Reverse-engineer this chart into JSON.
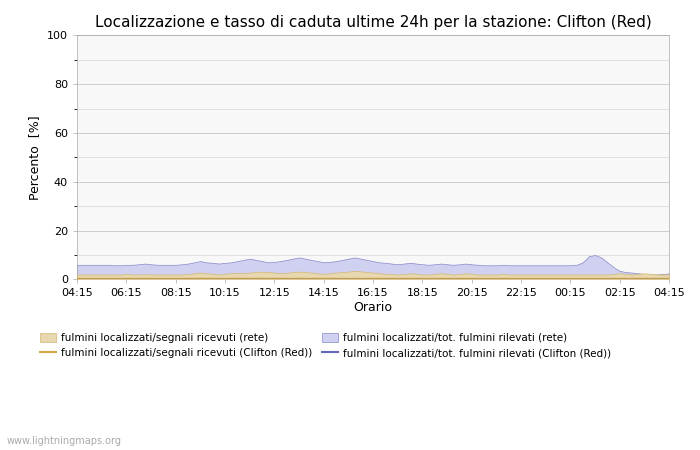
{
  "title": "Localizzazione e tasso di caduta ultime 24h per la stazione: Clifton (Red)",
  "ylabel": "Percento  [%]",
  "xlabel": "Orario",
  "ylim": [
    0,
    100
  ],
  "yticks": [
    0,
    20,
    40,
    60,
    80,
    100
  ],
  "yticks_minor": [
    10,
    30,
    50,
    70,
    90
  ],
  "x_labels": [
    "04:15",
    "06:15",
    "08:15",
    "10:15",
    "12:15",
    "14:15",
    "16:15",
    "18:15",
    "20:15",
    "22:15",
    "00:15",
    "02:15",
    "04:15"
  ],
  "fill_rete_color": "#e8d8b0",
  "fill_rete_edge": "#d4b870",
  "fill_clifton_color": "#d0d0f0",
  "fill_clifton_edge": "#8888cc",
  "line_rete_color": "#d4aa40",
  "line_clifton_color": "#6666bb",
  "watermark": "www.lightningmaps.org",
  "legend": [
    {
      "label": "fulmini localizzati/segnali ricevuti (rete)",
      "type": "fill",
      "color": "#e8d8b0",
      "edge": "#d4b870"
    },
    {
      "label": "fulmini localizzati/segnali ricevuti (Clifton (Red))",
      "type": "line",
      "color": "#d4aa40"
    },
    {
      "label": "fulmini localizzati/tot. fulmini rilevati (rete)",
      "type": "fill",
      "color": "#d0d0f0",
      "edge": "#8888cc"
    },
    {
      "label": "fulmini localizzati/tot. fulmini rilevati (Clifton (Red))",
      "type": "line",
      "color": "#6666bb"
    }
  ],
  "n_points": 97,
  "fill_rete_values": [
    2.0,
    2.0,
    2.0,
    2.0,
    2.0,
    2.0,
    2.0,
    2.0,
    2.2,
    2.0,
    2.0,
    2.1,
    2.0,
    2.0,
    2.0,
    2.0,
    2.0,
    2.0,
    2.2,
    2.5,
    2.8,
    2.5,
    2.3,
    2.0,
    2.3,
    2.5,
    2.7,
    2.5,
    2.8,
    3.0,
    3.2,
    3.0,
    2.8,
    2.5,
    2.7,
    3.0,
    3.2,
    3.0,
    2.8,
    2.5,
    2.3,
    2.5,
    2.8,
    3.0,
    3.2,
    3.5,
    3.3,
    3.0,
    2.8,
    2.5,
    2.3,
    2.2,
    2.0,
    2.2,
    2.5,
    2.3,
    2.0,
    2.0,
    2.2,
    2.5,
    2.3,
    2.0,
    2.2,
    2.5,
    2.3,
    2.0,
    2.0,
    2.0,
    2.0,
    2.2,
    2.0,
    2.0,
    2.0,
    2.0,
    2.0,
    2.0,
    2.0,
    2.0,
    2.0,
    2.0,
    2.0,
    2.0,
    2.0,
    2.0,
    2.0,
    2.0,
    2.0,
    2.2,
    2.5,
    2.3,
    2.0,
    2.2,
    2.5,
    2.3,
    2.0,
    2.0,
    2.0
  ],
  "fill_clifton_values": [
    6.0,
    6.0,
    6.0,
    6.0,
    6.0,
    6.0,
    5.8,
    5.8,
    6.0,
    6.0,
    6.2,
    6.5,
    6.2,
    6.0,
    6.0,
    6.0,
    6.0,
    6.2,
    6.5,
    7.0,
    7.5,
    7.0,
    6.8,
    6.5,
    6.8,
    7.0,
    7.5,
    8.0,
    8.5,
    8.0,
    7.5,
    7.0,
    7.2,
    7.5,
    8.0,
    8.5,
    9.0,
    8.5,
    8.0,
    7.5,
    7.0,
    7.2,
    7.5,
    8.0,
    8.5,
    9.0,
    8.5,
    8.0,
    7.5,
    7.0,
    6.8,
    6.5,
    6.2,
    6.5,
    6.8,
    6.5,
    6.2,
    6.0,
    6.2,
    6.5,
    6.2,
    6.0,
    6.2,
    6.5,
    6.2,
    6.0,
    5.8,
    5.8,
    5.8,
    6.0,
    5.8,
    5.8,
    5.8,
    5.8,
    5.8,
    5.8,
    5.8,
    5.8,
    5.8,
    5.8,
    5.8,
    6.0,
    7.0,
    9.5,
    10.0,
    9.0,
    7.0,
    5.0,
    3.5,
    3.0,
    2.8,
    2.5,
    2.2,
    2.0,
    2.0,
    2.2,
    2.5
  ],
  "line_rete_values": [
    0.5,
    0.5,
    0.5,
    0.5,
    0.5,
    0.5,
    0.5,
    0.5,
    0.5,
    0.5,
    0.5,
    0.5,
    0.5,
    0.5,
    0.5,
    0.5,
    0.5,
    0.5,
    0.5,
    0.5,
    0.5,
    0.5,
    0.5,
    0.5,
    0.5,
    0.5,
    0.5,
    0.5,
    0.5,
    0.5,
    0.5,
    0.5,
    0.5,
    0.5,
    0.5,
    0.5,
    0.5,
    0.5,
    0.5,
    0.5,
    0.5,
    0.5,
    0.5,
    0.5,
    0.5,
    0.5,
    0.5,
    0.5,
    0.5,
    0.5,
    0.5,
    0.5,
    0.5,
    0.5,
    0.5,
    0.5,
    0.5,
    0.5,
    0.5,
    0.5,
    0.5,
    0.5,
    0.5,
    0.5,
    0.5,
    0.5,
    0.5,
    0.5,
    0.5,
    0.5,
    0.5,
    0.5,
    0.5,
    0.5,
    0.5,
    0.5,
    0.5,
    0.5,
    0.5,
    0.5,
    0.5,
    0.5,
    0.5,
    0.5,
    0.5,
    0.5,
    0.5,
    0.5,
    0.5,
    0.5,
    0.5,
    0.5,
    0.5,
    0.5,
    0.5,
    0.5,
    0.5
  ],
  "line_clifton_values": [
    0.3,
    0.3,
    0.3,
    0.3,
    0.3,
    0.3,
    0.3,
    0.3,
    0.3,
    0.3,
    0.3,
    0.3,
    0.3,
    0.3,
    0.3,
    0.3,
    0.3,
    0.3,
    0.3,
    0.3,
    0.3,
    0.3,
    0.3,
    0.3,
    0.3,
    0.3,
    0.3,
    0.3,
    0.3,
    0.3,
    0.3,
    0.3,
    0.3,
    0.3,
    0.3,
    0.3,
    0.3,
    0.3,
    0.3,
    0.3,
    0.3,
    0.3,
    0.3,
    0.3,
    0.3,
    0.3,
    0.3,
    0.3,
    0.3,
    0.3,
    0.3,
    0.3,
    0.3,
    0.3,
    0.3,
    0.3,
    0.3,
    0.3,
    0.3,
    0.3,
    0.3,
    0.3,
    0.3,
    0.3,
    0.3,
    0.3,
    0.3,
    0.3,
    0.3,
    0.3,
    0.3,
    0.3,
    0.3,
    0.3,
    0.3,
    0.3,
    0.3,
    0.3,
    0.3,
    0.3,
    0.3,
    0.3,
    0.3,
    0.3,
    0.3,
    0.3,
    0.3,
    0.3,
    0.3,
    0.3,
    0.3,
    0.3,
    0.3,
    0.3,
    0.3,
    0.3,
    0.3
  ],
  "bg_color": "#ffffff",
  "plot_bg_color": "#f8f8f8",
  "grid_color": "#cccccc",
  "title_fontsize": 11,
  "axis_fontsize": 9,
  "tick_fontsize": 8
}
